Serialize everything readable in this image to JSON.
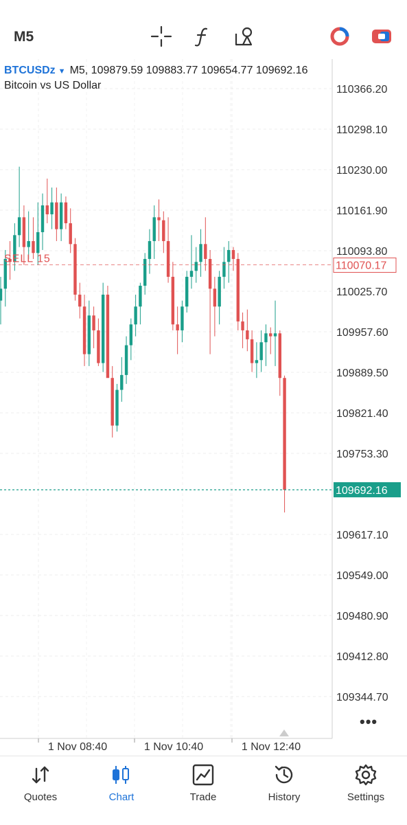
{
  "toolbar": {
    "timeframe": "M5",
    "icons": [
      "crosshair-icon",
      "indicators-icon",
      "objects-icon",
      "account-icon",
      "trade-toggle-icon"
    ]
  },
  "chart_info": {
    "symbol": "BTCUSDz",
    "ohlc_line": "M5, 109879.59 109883.77 109654.77 109692.16",
    "description": "Bitcoin vs US Dollar"
  },
  "chart_data": {
    "type": "candlestick",
    "symbol": "BTCUSDz",
    "timeframe": "M5",
    "last_open": 109879.59,
    "last_high": 109883.77,
    "last_low": 109654.77,
    "last_close": 109692.16,
    "y_ticks": [
      "110366.20",
      "110298.10",
      "110230.00",
      "110161.90",
      "110093.80",
      "110025.70",
      "109957.60",
      "109889.50",
      "109821.40",
      "109753.30",
      "109617.10",
      "109549.00",
      "109480.90",
      "109412.80",
      "109344.70"
    ],
    "x_ticks": [
      "1 Nov 08:40",
      "1 Nov 10:40",
      "1 Nov 12:40"
    ],
    "ylim": [
      109310,
      110410
    ],
    "order_line": {
      "label": "SELL 15",
      "price": 110070.17,
      "price_label": "110070.17",
      "color": "#e05252"
    },
    "current_price": {
      "value": 109692.16,
      "label": "109692.16",
      "color": "#1a9e8a"
    },
    "colors": {
      "up": "#1a9e8a",
      "down": "#e05252"
    },
    "candles": [
      {
        "o": 110010,
        "h": 110050,
        "l": 109970,
        "c": 110030
      },
      {
        "o": 110030,
        "h": 110095,
        "l": 110000,
        "c": 110080
      },
      {
        "o": 110080,
        "h": 110110,
        "l": 110045,
        "c": 110075
      },
      {
        "o": 110075,
        "h": 110140,
        "l": 110060,
        "c": 110120
      },
      {
        "o": 110120,
        "h": 110235,
        "l": 110100,
        "c": 110150
      },
      {
        "o": 110150,
        "h": 110170,
        "l": 110070,
        "c": 110100
      },
      {
        "o": 110100,
        "h": 110160,
        "l": 110080,
        "c": 110110
      },
      {
        "o": 110110,
        "h": 110150,
        "l": 110080,
        "c": 110090
      },
      {
        "o": 110090,
        "h": 110175,
        "l": 110070,
        "c": 110125
      },
      {
        "o": 110125,
        "h": 110190,
        "l": 110095,
        "c": 110170
      },
      {
        "o": 110170,
        "h": 110215,
        "l": 110140,
        "c": 110155
      },
      {
        "o": 110155,
        "h": 110200,
        "l": 110130,
        "c": 110175
      },
      {
        "o": 110175,
        "h": 110200,
        "l": 110110,
        "c": 110130
      },
      {
        "o": 110130,
        "h": 110190,
        "l": 110110,
        "c": 110175
      },
      {
        "o": 110175,
        "h": 110185,
        "l": 110130,
        "c": 110140
      },
      {
        "o": 110140,
        "h": 110165,
        "l": 110090,
        "c": 110105
      },
      {
        "o": 110105,
        "h": 110115,
        "l": 110010,
        "c": 110020
      },
      {
        "o": 110020,
        "h": 110040,
        "l": 109980,
        "c": 110000
      },
      {
        "o": 110000,
        "h": 110020,
        "l": 109900,
        "c": 109920
      },
      {
        "o": 109920,
        "h": 110010,
        "l": 109900,
        "c": 109985
      },
      {
        "o": 109985,
        "h": 110000,
        "l": 109930,
        "c": 109960
      },
      {
        "o": 109960,
        "h": 109980,
        "l": 109900,
        "c": 109905
      },
      {
        "o": 109905,
        "h": 110040,
        "l": 109890,
        "c": 110020
      },
      {
        "o": 110020,
        "h": 110035,
        "l": 109890,
        "c": 109880
      },
      {
        "o": 109880,
        "h": 109900,
        "l": 109780,
        "c": 109800
      },
      {
        "o": 109800,
        "h": 109870,
        "l": 109790,
        "c": 109860
      },
      {
        "o": 109860,
        "h": 109915,
        "l": 109840,
        "c": 109885
      },
      {
        "o": 109885,
        "h": 109950,
        "l": 109870,
        "c": 109935
      },
      {
        "o": 109935,
        "h": 109980,
        "l": 109910,
        "c": 109970
      },
      {
        "o": 109970,
        "h": 110020,
        "l": 109950,
        "c": 110000
      },
      {
        "o": 110000,
        "h": 110040,
        "l": 109970,
        "c": 110035
      },
      {
        "o": 110035,
        "h": 110090,
        "l": 110020,
        "c": 110080
      },
      {
        "o": 110080,
        "h": 110130,
        "l": 110055,
        "c": 110110
      },
      {
        "o": 110110,
        "h": 110170,
        "l": 110080,
        "c": 110150
      },
      {
        "o": 110150,
        "h": 110180,
        "l": 110110,
        "c": 110145
      },
      {
        "o": 110145,
        "h": 110160,
        "l": 110090,
        "c": 110110
      },
      {
        "o": 110110,
        "h": 110150,
        "l": 110040,
        "c": 110050
      },
      {
        "o": 110050,
        "h": 110075,
        "l": 109960,
        "c": 109970
      },
      {
        "o": 109970,
        "h": 110000,
        "l": 109920,
        "c": 109960
      },
      {
        "o": 109960,
        "h": 110010,
        "l": 109940,
        "c": 110000
      },
      {
        "o": 110000,
        "h": 110060,
        "l": 109990,
        "c": 110050
      },
      {
        "o": 110050,
        "h": 110120,
        "l": 110030,
        "c": 110060
      },
      {
        "o": 110060,
        "h": 110100,
        "l": 110040,
        "c": 110075
      },
      {
        "o": 110075,
        "h": 110130,
        "l": 110050,
        "c": 110105
      },
      {
        "o": 110105,
        "h": 110150,
        "l": 110060,
        "c": 110080
      },
      {
        "o": 110080,
        "h": 110095,
        "l": 109920,
        "c": 110030
      },
      {
        "o": 110030,
        "h": 110050,
        "l": 109950,
        "c": 110000
      },
      {
        "o": 110000,
        "h": 110060,
        "l": 109970,
        "c": 110050
      },
      {
        "o": 110050,
        "h": 110100,
        "l": 110030,
        "c": 110075
      },
      {
        "o": 110075,
        "h": 110110,
        "l": 110040,
        "c": 110095
      },
      {
        "o": 110095,
        "h": 110100,
        "l": 110060,
        "c": 110080
      },
      {
        "o": 110080,
        "h": 110090,
        "l": 109960,
        "c": 109975
      },
      {
        "o": 109975,
        "h": 109990,
        "l": 109930,
        "c": 109960
      },
      {
        "o": 109960,
        "h": 109995,
        "l": 109925,
        "c": 109945
      },
      {
        "o": 109945,
        "h": 109960,
        "l": 109890,
        "c": 109905
      },
      {
        "o": 109905,
        "h": 109940,
        "l": 109880,
        "c": 109910
      },
      {
        "o": 109910,
        "h": 109960,
        "l": 109890,
        "c": 109940
      },
      {
        "o": 109940,
        "h": 109970,
        "l": 109900,
        "c": 109955
      },
      {
        "o": 109955,
        "h": 109965,
        "l": 109920,
        "c": 109950
      },
      {
        "o": 109950,
        "h": 110010,
        "l": 109900,
        "c": 109955
      },
      {
        "o": 109955,
        "h": 109960,
        "l": 109850,
        "c": 109880
      },
      {
        "o": 109880,
        "h": 109884,
        "l": 109654,
        "c": 109692
      }
    ]
  },
  "tabs": [
    {
      "label": "Quotes",
      "icon": "quotes-icon"
    },
    {
      "label": "Chart",
      "icon": "chart-icon"
    },
    {
      "label": "Trade",
      "icon": "trade-icon"
    },
    {
      "label": "History",
      "icon": "history-icon"
    },
    {
      "label": "Settings",
      "icon": "settings-icon"
    }
  ],
  "active_tab": "Chart"
}
